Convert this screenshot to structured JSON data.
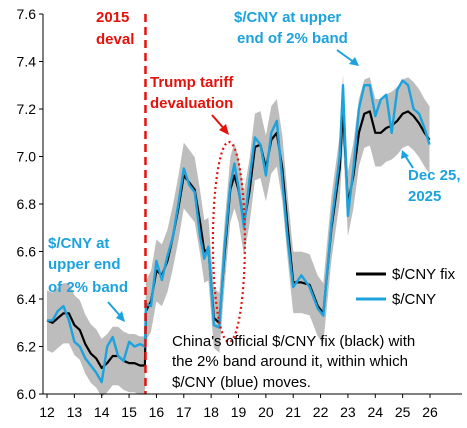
{
  "chart_data": {
    "type": "line",
    "x_ticks": [
      "12",
      "13",
      "14",
      "15",
      "16",
      "17",
      "18",
      "19",
      "20",
      "21",
      "22",
      "23",
      "24",
      "25",
      "26"
    ],
    "y_ticks": [
      "6.0",
      "6.2",
      "6.4",
      "6.6",
      "6.8",
      "7.0",
      "7.2",
      "7.4",
      "7.6"
    ],
    "ylim": [
      6.0,
      7.6
    ],
    "xlim": [
      2012.0,
      2026.2
    ],
    "grid": false,
    "legend_position": "bottom-right",
    "colors": {
      "fix": "#000000",
      "spot": "#1ca3dd",
      "band": "#bdbdbd",
      "annotation_red": "#e3120b",
      "annotation_blue": "#1ca3dd"
    },
    "series": [
      {
        "name": "$/CNY fix",
        "points": [
          [
            2012.0,
            6.31
          ],
          [
            2012.2,
            6.3
          ],
          [
            2012.4,
            6.32
          ],
          [
            2012.6,
            6.34
          ],
          [
            2012.8,
            6.34
          ],
          [
            2013.0,
            6.29
          ],
          [
            2013.2,
            6.27
          ],
          [
            2013.4,
            6.21
          ],
          [
            2013.6,
            6.17
          ],
          [
            2013.8,
            6.15
          ],
          [
            2014.0,
            6.11
          ],
          [
            2014.2,
            6.13
          ],
          [
            2014.4,
            6.16
          ],
          [
            2014.6,
            6.16
          ],
          [
            2014.8,
            6.14
          ],
          [
            2015.0,
            6.13
          ],
          [
            2015.2,
            6.13
          ],
          [
            2015.4,
            6.12
          ],
          [
            2015.58,
            6.12
          ],
          [
            2015.62,
            6.35
          ],
          [
            2015.8,
            6.39
          ],
          [
            2016.0,
            6.52
          ],
          [
            2016.2,
            6.5
          ],
          [
            2016.4,
            6.56
          ],
          [
            2016.6,
            6.66
          ],
          [
            2016.8,
            6.78
          ],
          [
            2017.0,
            6.92
          ],
          [
            2017.2,
            6.89
          ],
          [
            2017.4,
            6.86
          ],
          [
            2017.6,
            6.72
          ],
          [
            2017.75,
            6.6
          ],
          [
            2017.9,
            6.61
          ],
          [
            2018.1,
            6.32
          ],
          [
            2018.3,
            6.3
          ],
          [
            2018.5,
            6.6
          ],
          [
            2018.7,
            6.86
          ],
          [
            2018.85,
            6.92
          ],
          [
            2019.0,
            6.86
          ],
          [
            2019.2,
            6.72
          ],
          [
            2019.4,
            6.85
          ],
          [
            2019.6,
            7.04
          ],
          [
            2019.8,
            7.05
          ],
          [
            2020.0,
            6.95
          ],
          [
            2020.2,
            7.07
          ],
          [
            2020.4,
            7.1
          ],
          [
            2020.6,
            6.95
          ],
          [
            2020.8,
            6.7
          ],
          [
            2021.0,
            6.47
          ],
          [
            2021.3,
            6.47
          ],
          [
            2021.6,
            6.46
          ],
          [
            2021.9,
            6.37
          ],
          [
            2022.1,
            6.34
          ],
          [
            2022.4,
            6.7
          ],
          [
            2022.7,
            6.95
          ],
          [
            2022.82,
            7.2
          ],
          [
            2023.0,
            6.8
          ],
          [
            2023.2,
            6.92
          ],
          [
            2023.4,
            7.1
          ],
          [
            2023.6,
            7.18
          ],
          [
            2023.8,
            7.19
          ],
          [
            2024.0,
            7.1
          ],
          [
            2024.2,
            7.1
          ],
          [
            2024.4,
            7.12
          ],
          [
            2024.6,
            7.13
          ],
          [
            2024.8,
            7.15
          ],
          [
            2025.0,
            7.18
          ],
          [
            2025.2,
            7.19
          ],
          [
            2025.4,
            7.17
          ],
          [
            2025.6,
            7.14
          ],
          [
            2025.8,
            7.1
          ],
          [
            2025.98,
            7.07
          ]
        ]
      },
      {
        "name": "$/CNY",
        "points": [
          [
            2012.0,
            6.31
          ],
          [
            2012.2,
            6.31
          ],
          [
            2012.4,
            6.35
          ],
          [
            2012.6,
            6.37
          ],
          [
            2012.8,
            6.31
          ],
          [
            2013.0,
            6.22
          ],
          [
            2013.2,
            6.2
          ],
          [
            2013.4,
            6.15
          ],
          [
            2013.6,
            6.12
          ],
          [
            2013.8,
            6.09
          ],
          [
            2014.0,
            6.05
          ],
          [
            2014.2,
            6.2
          ],
          [
            2014.4,
            6.24
          ],
          [
            2014.6,
            6.16
          ],
          [
            2014.8,
            6.14
          ],
          [
            2015.0,
            6.22
          ],
          [
            2015.2,
            6.2
          ],
          [
            2015.4,
            6.21
          ],
          [
            2015.58,
            6.2
          ],
          [
            2015.62,
            6.38
          ],
          [
            2015.8,
            6.37
          ],
          [
            2016.0,
            6.56
          ],
          [
            2016.2,
            6.48
          ],
          [
            2016.4,
            6.58
          ],
          [
            2016.6,
            6.66
          ],
          [
            2016.8,
            6.8
          ],
          [
            2017.0,
            6.95
          ],
          [
            2017.2,
            6.88
          ],
          [
            2017.4,
            6.85
          ],
          [
            2017.6,
            6.66
          ],
          [
            2017.75,
            6.57
          ],
          [
            2017.9,
            6.62
          ],
          [
            2018.1,
            6.29
          ],
          [
            2018.3,
            6.28
          ],
          [
            2018.5,
            6.63
          ],
          [
            2018.7,
            6.88
          ],
          [
            2018.85,
            6.97
          ],
          [
            2019.0,
            6.87
          ],
          [
            2019.2,
            6.7
          ],
          [
            2019.4,
            6.9
          ],
          [
            2019.6,
            7.08
          ],
          [
            2019.8,
            7.05
          ],
          [
            2020.0,
            6.92
          ],
          [
            2020.2,
            7.1
          ],
          [
            2020.4,
            7.15
          ],
          [
            2020.6,
            6.9
          ],
          [
            2020.8,
            6.65
          ],
          [
            2021.0,
            6.45
          ],
          [
            2021.3,
            6.5
          ],
          [
            2021.6,
            6.45
          ],
          [
            2021.9,
            6.36
          ],
          [
            2022.1,
            6.33
          ],
          [
            2022.4,
            6.72
          ],
          [
            2022.7,
            7.0
          ],
          [
            2022.82,
            7.3
          ],
          [
            2023.0,
            6.75
          ],
          [
            2023.2,
            6.95
          ],
          [
            2023.4,
            7.2
          ],
          [
            2023.6,
            7.3
          ],
          [
            2023.8,
            7.3
          ],
          [
            2024.0,
            7.17
          ],
          [
            2024.2,
            7.24
          ],
          [
            2024.4,
            7.26
          ],
          [
            2024.6,
            7.1
          ],
          [
            2024.8,
            7.28
          ],
          [
            2025.0,
            7.32
          ],
          [
            2025.2,
            7.3
          ],
          [
            2025.4,
            7.2
          ],
          [
            2025.6,
            7.18
          ],
          [
            2025.8,
            7.12
          ],
          [
            2025.98,
            7.05
          ]
        ]
      }
    ],
    "band_pct": 0.02,
    "legend": [
      "$/CNY fix",
      "$/CNY"
    ],
    "annotations": {
      "deval_line1": "2015",
      "deval_line2": "deval",
      "trump_line1": "Trump tariff",
      "trump_line2": "devaluation",
      "upper_right_line1": "$/CNY at upper",
      "upper_right_line2": "end of 2% band",
      "date_line1": "Dec 25,",
      "date_line2": "2025",
      "upper_left_line1": "$/CNY at",
      "upper_left_line2": "upper end",
      "upper_left_line3": "of 2% band",
      "note_line1": "China's official $/CNY fix (black) with",
      "note_line2": "the 2% band around it, within which",
      "note_line3": "$/CNY (blue) moves."
    }
  }
}
